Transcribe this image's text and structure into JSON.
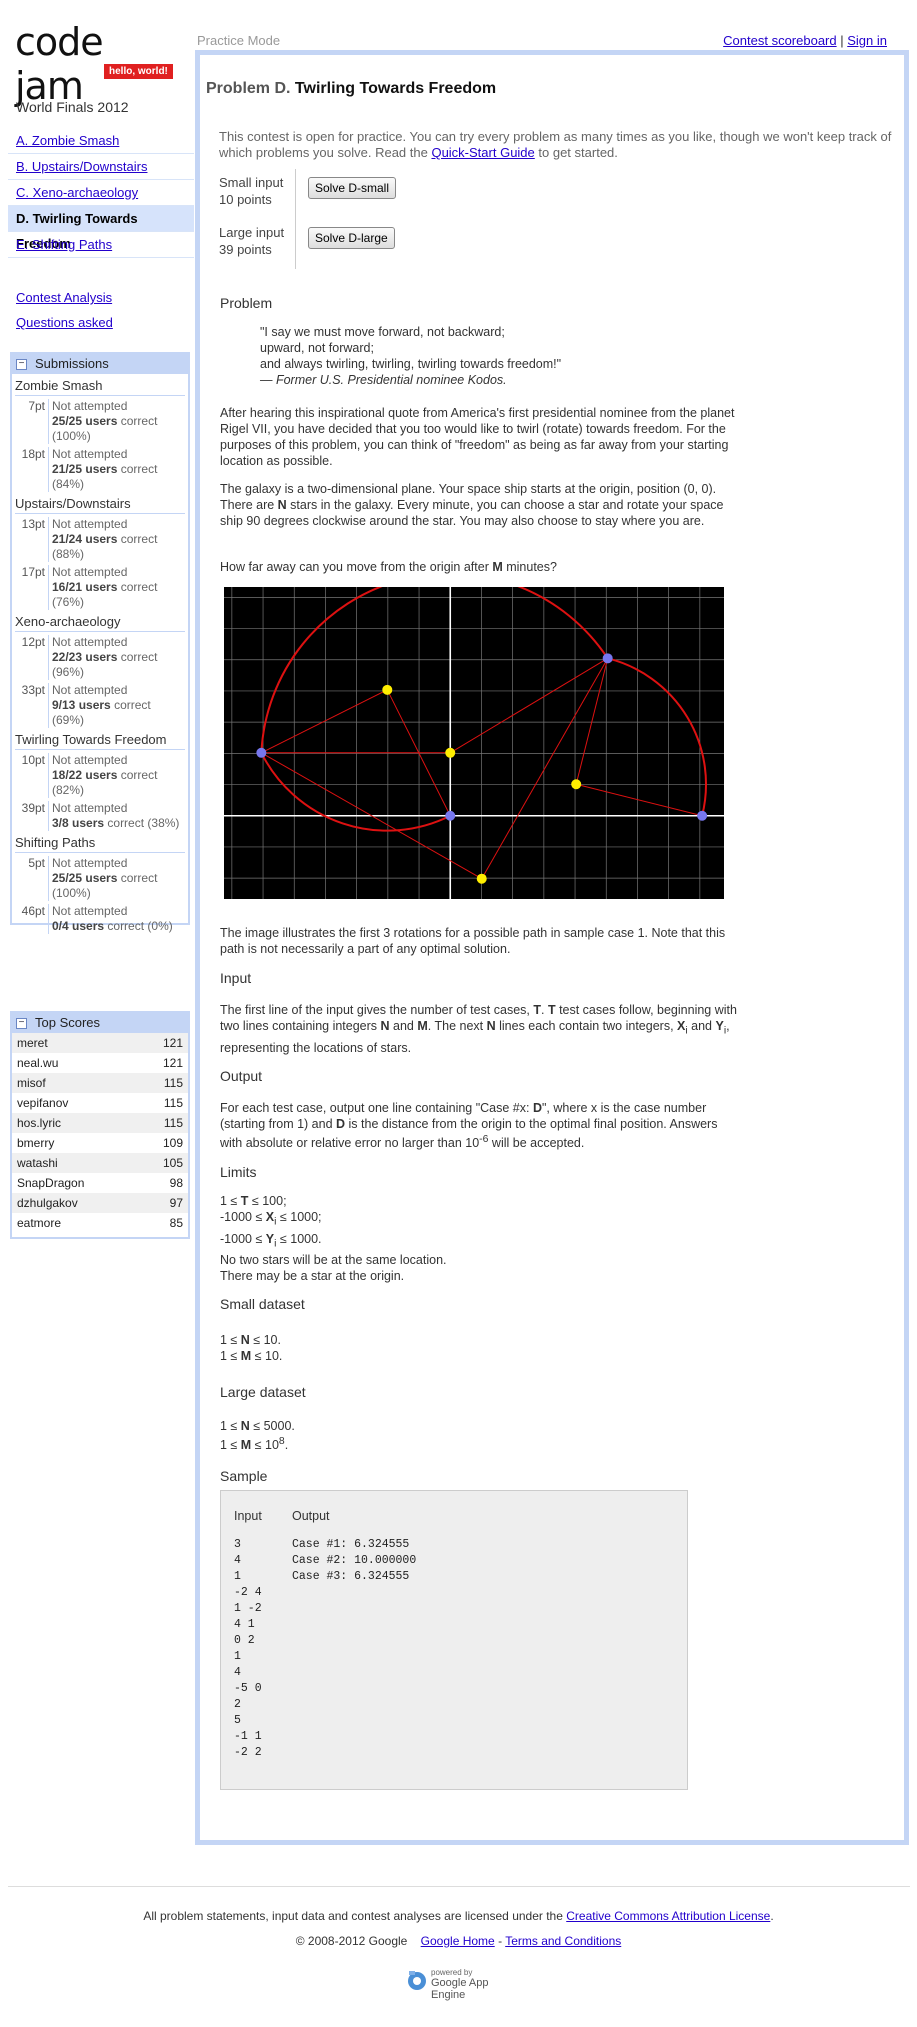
{
  "logo": {
    "word": "code jam",
    "tag": "hello, world!"
  },
  "contest_name": "World Finals 2012",
  "problems": [
    {
      "label": "A. Zombie Smash",
      "active": false
    },
    {
      "label": "B. Upstairs/Downstairs",
      "active": false
    },
    {
      "label": "C. Xeno-archaeology",
      "active": false
    },
    {
      "label": "D. Twirling Towards Freedom",
      "active": true
    },
    {
      "label": "E. Shifting Paths",
      "active": false
    }
  ],
  "misc_links": [
    "Contest Analysis",
    "Questions asked"
  ],
  "submissions": {
    "title": "Submissions",
    "minus": "−",
    "groups": [
      {
        "name": "Zombie Smash",
        "rows": [
          {
            "pts": "7pt",
            "status": "Not attempted",
            "users": "25/25 users",
            "correct": "correct",
            "pct": "(100%)"
          },
          {
            "pts": "18pt",
            "status": "Not attempted",
            "users": "21/25 users",
            "correct": "correct",
            "pct": "(84%)"
          }
        ]
      },
      {
        "name": "Upstairs/Downstairs",
        "rows": [
          {
            "pts": "13pt",
            "status": "Not attempted",
            "users": "21/24 users",
            "correct": "correct",
            "pct": "(88%)"
          },
          {
            "pts": "17pt",
            "status": "Not attempted",
            "users": "16/21 users",
            "correct": "correct",
            "pct": "(76%)"
          }
        ]
      },
      {
        "name": "Xeno-archaeology",
        "rows": [
          {
            "pts": "12pt",
            "status": "Not attempted",
            "users": "22/23 users",
            "correct": "correct",
            "pct": "(96%)"
          },
          {
            "pts": "33pt",
            "status": "Not attempted",
            "users": "9/13 users",
            "correct": "correct",
            "pct": "(69%)"
          }
        ]
      },
      {
        "name": "Twirling Towards Freedom",
        "rows": [
          {
            "pts": "10pt",
            "status": "Not attempted",
            "users": "18/22 users",
            "correct": "correct",
            "pct": "(82%)"
          },
          {
            "pts": "39pt",
            "status": "Not attempted",
            "users": "3/8 users",
            "correct": "correct (38%)",
            "pct": ""
          }
        ]
      },
      {
        "name": "Shifting Paths",
        "rows": [
          {
            "pts": "5pt",
            "status": "Not attempted",
            "users": "25/25 users",
            "correct": "correct",
            "pct": "(100%)"
          },
          {
            "pts": "46pt",
            "status": "Not attempted",
            "users": "0/4 users",
            "correct": "correct (0%)",
            "pct": ""
          }
        ]
      }
    ]
  },
  "top_scores": {
    "title": "Top Scores",
    "rows": [
      {
        "name": "meret",
        "score": "121"
      },
      {
        "name": "neal.wu",
        "score": "121"
      },
      {
        "name": "misof",
        "score": "115"
      },
      {
        "name": "vepifanov",
        "score": "115"
      },
      {
        "name": "hos.lyric",
        "score": "115"
      },
      {
        "name": "bmerry",
        "score": "109"
      },
      {
        "name": "watashi",
        "score": "105"
      },
      {
        "name": "SnapDragon",
        "score": "98"
      },
      {
        "name": "dzhulgakov",
        "score": "97"
      },
      {
        "name": "eatmore",
        "score": "85"
      }
    ]
  },
  "header": {
    "mode": "Practice Mode",
    "scoreboard": "Contest scoreboard",
    "sep": "|",
    "signin": "Sign in"
  },
  "problem": {
    "prefix": "Problem D.",
    "title": "Twirling Towards Freedom",
    "open_note_1": "This contest is open for practice. You can try every problem as many times as you like, though we won't keep track of which problems you solve. Read the ",
    "open_note_link": "Quick-Start Guide",
    "open_note_2": " to get started.",
    "small_label": "Small input",
    "small_points": "10 points",
    "small_button": "Solve D-small",
    "large_label": "Large input",
    "large_points": "39 points",
    "large_button": "Solve D-large",
    "sec_problem": "Problem",
    "quote": [
      "\"I say we must move forward, not backward;",
      "upward, not forward;",
      "and always twirling, twirling, twirling towards freedom!\""
    ],
    "quote_author": "— Former U.S. Presidential nominee Kodos.",
    "p1": "After hearing this inspirational quote from America's first presidential nominee from the planet Rigel VII, you have decided that you too would like to twirl (rotate) towards freedom. For the purposes of this problem, you can think of \"freedom\" as being as far away from your starting location as possible.",
    "p2": "The galaxy is a two-dimensional plane. Your space ship starts at the origin, position (0, 0). There are N stars in the galaxy. Every minute, you can choose a star and rotate your space ship 90 degrees clockwise around the star. You may also choose to stay where you are.",
    "p3": "How far away can you move from the origin after M minutes?",
    "p4": "The image illustrates the first 3 rotations for a possible path in sample case 1. Note that this path is not necessarily a part of any optimal solution.",
    "sec_input": "Input",
    "input_text": "The first line of the input gives the number of test cases, T. T test cases follow, beginning with two lines containing integers N and M. The next N lines each contain two integers, Xi and Yi, representing the locations of stars.",
    "sec_output": "Output",
    "output_text": "For each test case, output one line containing \"Case #x: D\", where x is the case number (starting from 1) and D is the distance from the origin to the optimal final position. Answers with absolute or relative error no larger than 10-6 will be accepted.",
    "sec_limits": "Limits",
    "limits": [
      "1 ≤ T ≤ 100;",
      "-1000 ≤ Xi ≤ 1000;",
      "-1000 ≤ Yi ≤ 1000.",
      "No two stars will be at the same location.",
      "There may be a star at the origin."
    ],
    "sec_small": "Small dataset",
    "small": [
      "1 ≤ N ≤ 10.",
      "1 ≤ M ≤ 10."
    ],
    "sec_large": "Large dataset",
    "large": [
      "1 ≤ N ≤ 5000.",
      "1 ≤ M ≤ 108."
    ],
    "sec_sample": "Sample",
    "sample_input_hdr": "Input",
    "sample_output_hdr": "Output",
    "sample_input": "3\n4\n1\n-2 4\n1 -2\n4 1\n0 2\n1\n4\n-5 0\n2\n5\n-1 1\n-2 2",
    "sample_output": "Case #1: 6.324555\nCase #2: 10.000000\nCase #3: 6.324555"
  },
  "footer": {
    "license_text": "All problem statements, input data and contest analyses are licensed under the ",
    "license_link": "Creative Commons Attribution License",
    "license_end": ".",
    "copyright": "© 2008-2012 Google",
    "home": "Google Home",
    "sep": "-",
    "terms": "Terms and Conditions",
    "powered_by": "powered by",
    "app_engine": "Google App Engine"
  },
  "colors": {
    "accent_frame": "#c4d5f5",
    "active_nav": "#d6e3fb",
    "path": "#dd1111",
    "star": "#ffee00",
    "ship": "#7777ee"
  }
}
